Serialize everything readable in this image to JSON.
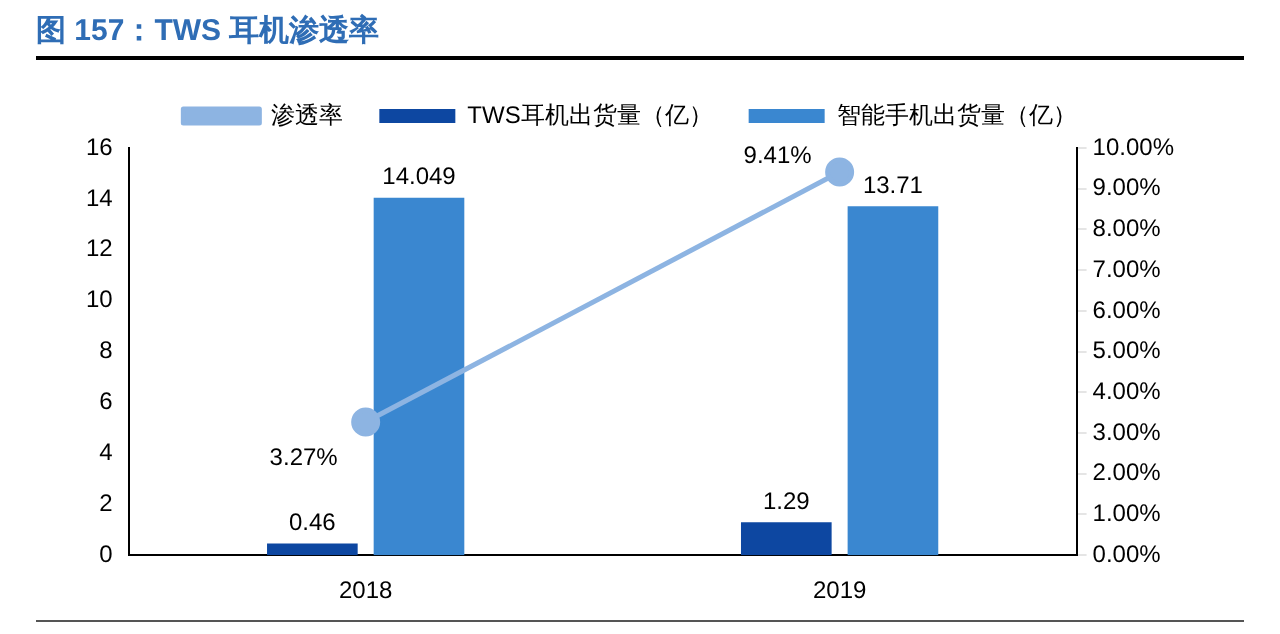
{
  "chart_data": {
    "type": "bar",
    "title": "图 157：TWS 耳机渗透率",
    "categories": [
      "2018",
      "2019"
    ],
    "series": [
      {
        "name": "TWS耳机出货量（亿）",
        "color": "#0d47a1",
        "values": [
          0.46,
          1.29
        ],
        "value_labels": [
          "0.46",
          "1.29"
        ]
      },
      {
        "name": "智能手机出货量（亿）",
        "color": "#3a87d0",
        "values": [
          14.049,
          13.71
        ],
        "value_labels": [
          "14.049",
          "13.71"
        ]
      },
      {
        "name": "渗透率",
        "type": "line",
        "axis": "y2",
        "color": "#8db4e2",
        "marker": "circle",
        "values": [
          3.27,
          9.41
        ],
        "value_labels": [
          "3.27%",
          "9.41%"
        ]
      }
    ],
    "ylim": [
      0,
      16
    ],
    "yticks": [
      0,
      2,
      4,
      6,
      8,
      10,
      12,
      14,
      16
    ],
    "y2lim": [
      0,
      10
    ],
    "y2ticks": [
      {
        "value": 0,
        "label": "0.00%"
      },
      {
        "value": 1,
        "label": "1.00%"
      },
      {
        "value": 2,
        "label": "2.00%"
      },
      {
        "value": 3,
        "label": "3.00%"
      },
      {
        "value": 4,
        "label": "4.00%"
      },
      {
        "value": 5,
        "label": "5.00%"
      },
      {
        "value": 6,
        "label": "6.00%"
      },
      {
        "value": 7,
        "label": "7.00%"
      },
      {
        "value": 8,
        "label": "8.00%"
      },
      {
        "value": 9,
        "label": "9.00%"
      },
      {
        "value": 10,
        "label": "10.00%"
      }
    ],
    "legend": "top",
    "grid": false
  }
}
